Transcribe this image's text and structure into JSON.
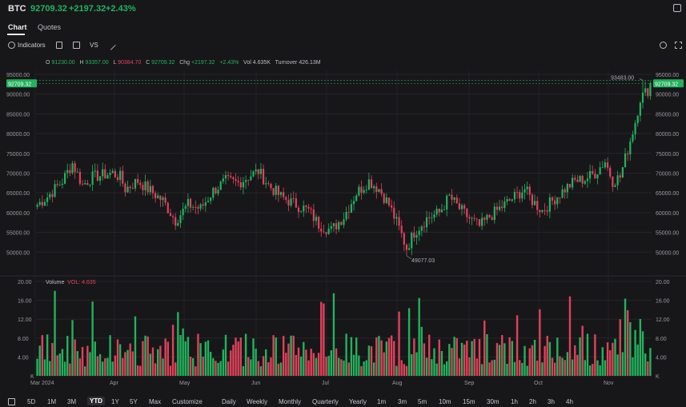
{
  "header": {
    "symbol": "BTC",
    "price": "92709.32",
    "change": "+2197.32",
    "change_pct": "+2.43%",
    "colors": {
      "up": "#22b35c",
      "down": "#e0425a"
    }
  },
  "tabs": [
    {
      "label": "Chart"
    },
    {
      "label": "Quotes"
    }
  ],
  "toolbar": {
    "indicators_label": "Indicators",
    "vs_label": "VS",
    "icons": [
      "indicators-icon",
      "candle-type-icon",
      "square-icon",
      "pen-icon",
      "settings-icon",
      "fullscreen-icon"
    ]
  },
  "ohlc": {
    "o_label": "O",
    "o": "91230.00",
    "h_label": "H",
    "h": "93357.00",
    "l_label": "L",
    "l": "90384.70",
    "c_label": "C",
    "c": "92709.32",
    "chg_label": "Chg",
    "chg": "+2197.32",
    "pct": "+2.43%",
    "vol_label": "Vol",
    "vol": "4.635K",
    "turnover_label": "Turnover",
    "turnover": "426.13M"
  },
  "volume_legend": {
    "label": "Volume",
    "vol_label": "VOL:",
    "vol": "4.635"
  },
  "chart_data": {
    "type": "candlestick",
    "price_axis": {
      "ylim": [
        45000,
        96000
      ],
      "ticks": [
        "95000.00",
        "90000.00",
        "85000.00",
        "80000.00",
        "75000.00",
        "70000.00",
        "65000.00",
        "60000.00",
        "55000.00",
        "50000.00"
      ]
    },
    "volume_axis": {
      "ylim": [
        0,
        20
      ],
      "ticks": [
        "20.00",
        "16.00",
        "12.00",
        "8.00",
        "4.00",
        "K"
      ]
    },
    "x_labels": [
      "Mar 2024",
      "Apr",
      "May",
      "Jun",
      "Jul",
      "Aug",
      "Sep",
      "Oct",
      "Nov"
    ],
    "annotations": {
      "high": "93483.00",
      "low": "49077.03",
      "last": "92709.32"
    },
    "anchors": [
      [
        0,
        62000
      ],
      [
        4,
        64000
      ],
      [
        10,
        68000
      ],
      [
        14,
        72500
      ],
      [
        18,
        67000
      ],
      [
        22,
        69000
      ],
      [
        30,
        70000
      ],
      [
        33,
        69000
      ],
      [
        35,
        66000
      ],
      [
        40,
        68000
      ],
      [
        45,
        65500
      ],
      [
        50,
        63000
      ],
      [
        55,
        58000
      ],
      [
        60,
        62000
      ],
      [
        65,
        61000
      ],
      [
        70,
        65500
      ],
      [
        75,
        68000
      ],
      [
        80,
        67500
      ],
      [
        85,
        69500
      ],
      [
        88,
        70500
      ],
      [
        92,
        67000
      ],
      [
        97,
        64000
      ],
      [
        103,
        62000
      ],
      [
        108,
        60500
      ],
      [
        112,
        57000
      ],
      [
        117,
        55500
      ],
      [
        122,
        59000
      ],
      [
        127,
        65000
      ],
      [
        132,
        68000
      ],
      [
        136,
        66000
      ],
      [
        140,
        62000
      ],
      [
        144,
        56000
      ],
      [
        147,
        51000
      ],
      [
        150,
        55000
      ],
      [
        155,
        58500
      ],
      [
        160,
        60000
      ],
      [
        164,
        64000
      ],
      [
        168,
        61000
      ],
      [
        172,
        58500
      ],
      [
        176,
        56500
      ],
      [
        180,
        59000
      ],
      [
        185,
        61500
      ],
      [
        190,
        64000
      ],
      [
        194,
        66000
      ],
      [
        197,
        63000
      ],
      [
        201,
        60500
      ],
      [
        205,
        63000
      ],
      [
        210,
        66000
      ],
      [
        214,
        68000
      ],
      [
        218,
        68500
      ],
      [
        222,
        70000
      ],
      [
        226,
        73000
      ],
      [
        229,
        68000
      ],
      [
        232,
        69000
      ],
      [
        235,
        76000
      ],
      [
        238,
        83000
      ],
      [
        240,
        89000
      ],
      [
        243,
        91000
      ],
      [
        245,
        92709
      ]
    ],
    "candles": 245
  },
  "bottom_bar": {
    "ranges": [
      "5D",
      "1M",
      "3M",
      "YTD",
      "1Y",
      "5Y",
      "Max",
      "Customize"
    ],
    "intervals": [
      "Daily",
      "Weekly",
      "Monthly",
      "Quarterly",
      "Yearly",
      "1m",
      "3m",
      "5m",
      "10m",
      "15m",
      "30m",
      "1h",
      "2h",
      "3h",
      "4h"
    ],
    "selected": "YTD"
  }
}
